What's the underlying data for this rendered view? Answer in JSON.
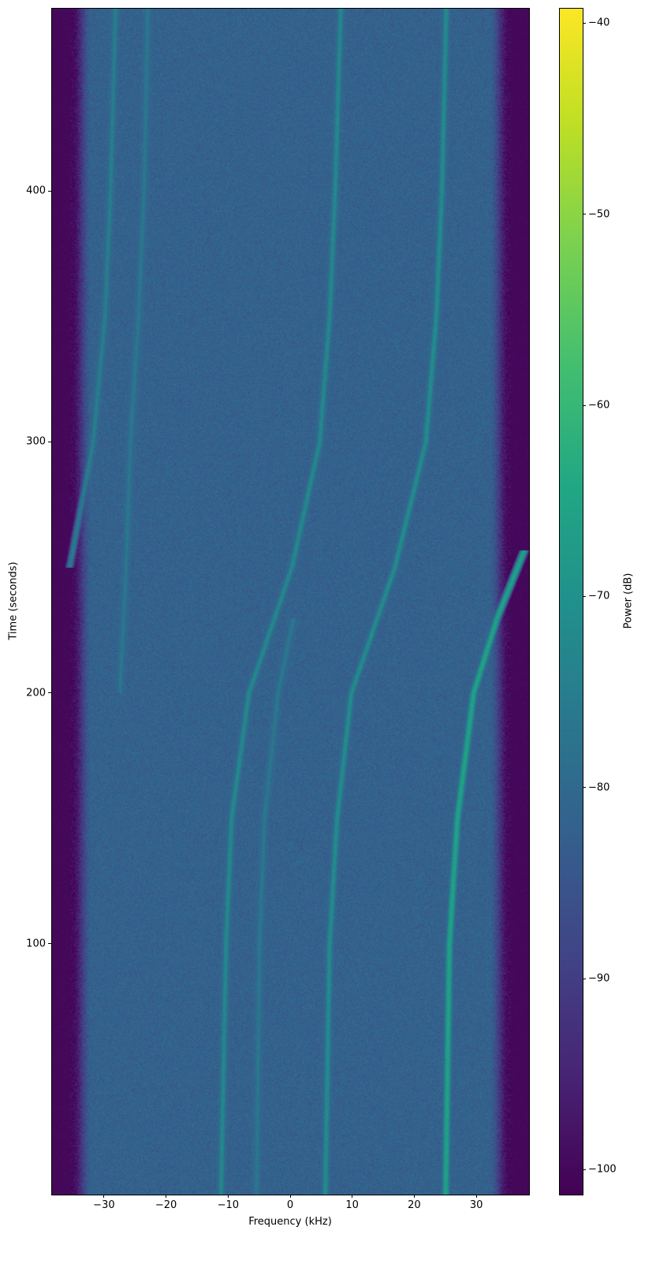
{
  "chart_data": {
    "type": "heatmap",
    "xlabel": "Frequency (kHz)",
    "ylabel": "Time (seconds)",
    "xlim": [
      -38.5,
      38.5
    ],
    "ylim": [
      0,
      473
    ],
    "xticks": [
      -30,
      -20,
      -10,
      0,
      10,
      20,
      30
    ],
    "xtick_labels": [
      "−30",
      "−20",
      "−10",
      "0",
      "10",
      "20",
      "30"
    ],
    "yticks": [
      100,
      200,
      300,
      400
    ],
    "ytick_labels": [
      "100",
      "200",
      "300",
      "400"
    ],
    "colormap": "viridis",
    "colorbar": {
      "label": "Power (dB)",
      "range": [
        -101.3,
        -39.2
      ],
      "ticks": [
        -40,
        -50,
        -60,
        -70,
        -80,
        -90,
        -100
      ],
      "tick_labels": [
        "−40",
        "−50",
        "−60",
        "−70",
        "−80",
        "−90",
        "−100"
      ]
    },
    "noise_floor_db": -82,
    "passband_khz": [
      -34,
      34
    ],
    "out_of_band_db": -100,
    "traces": [
      {
        "peak_db": -66,
        "points": [
          [
            0,
            25.0
          ],
          [
            100,
            25.6
          ],
          [
            150,
            26.9
          ],
          [
            200,
            29.5
          ],
          [
            230,
            33.3
          ],
          [
            257,
            37.7
          ]
        ]
      },
      {
        "peak_db": -72,
        "points": [
          [
            0,
            5.6
          ],
          [
            100,
            6.3
          ],
          [
            150,
            7.5
          ],
          [
            200,
            9.8
          ],
          [
            250,
            16.8
          ],
          [
            300,
            21.8
          ],
          [
            350,
            23.5
          ],
          [
            400,
            24.4
          ],
          [
            473,
            25.1
          ]
        ]
      },
      {
        "peak_db": -73,
        "points": [
          [
            0,
            -11.2
          ],
          [
            100,
            -10.4
          ],
          [
            150,
            -9.5
          ],
          [
            200,
            -6.7
          ],
          [
            250,
            0.2
          ],
          [
            300,
            4.7
          ],
          [
            350,
            6.3
          ],
          [
            400,
            7.2
          ],
          [
            473,
            8.1
          ]
        ]
      },
      {
        "peak_db": -76,
        "points": [
          [
            250,
            -35.6
          ],
          [
            300,
            -31.8
          ],
          [
            350,
            -29.9
          ],
          [
            400,
            -29.0
          ],
          [
            473,
            -28.2
          ]
        ]
      },
      {
        "peak_db": -78,
        "points": [
          [
            200,
            -27.5
          ],
          [
            250,
            -26.5
          ],
          [
            300,
            -25.8
          ],
          [
            350,
            -24.5
          ],
          [
            400,
            -23.6
          ],
          [
            473,
            -23.0
          ]
        ]
      },
      {
        "peak_db": -78,
        "points": [
          [
            0,
            -5.5
          ],
          [
            100,
            -5.0
          ],
          [
            150,
            -4.2
          ],
          [
            200,
            -2.0
          ],
          [
            230,
            0.5
          ]
        ]
      }
    ]
  }
}
